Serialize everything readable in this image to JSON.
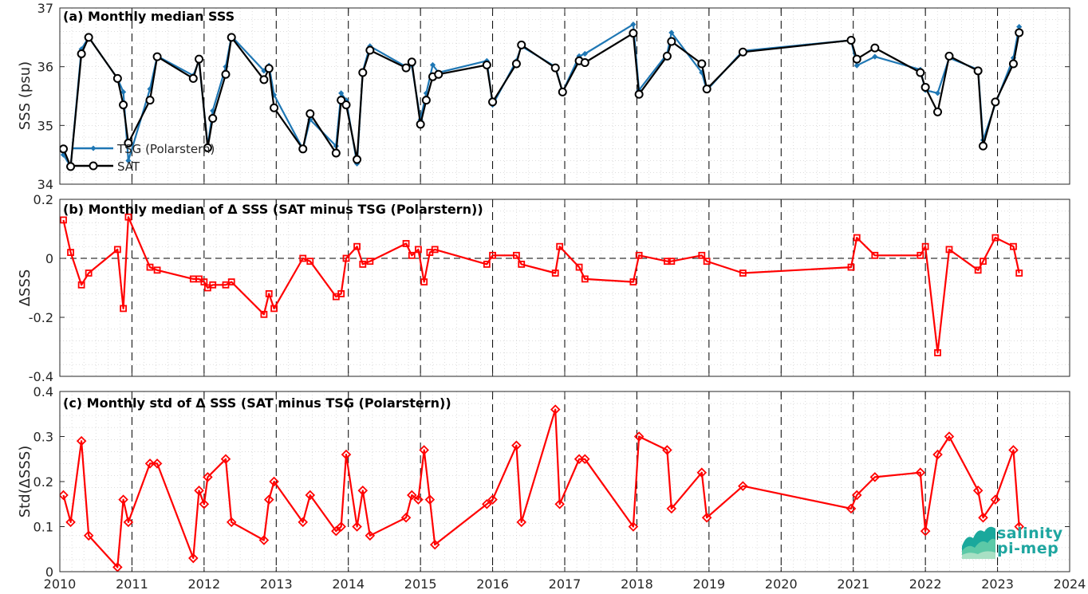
{
  "chart_data": [
    {
      "type": "line",
      "title": "(a) Monthly median SSS",
      "ylabel": "SSS (psu)",
      "ylim": [
        34,
        37
      ],
      "xlim": [
        2010,
        2024
      ],
      "yticks": [
        "34",
        "35",
        "36",
        "37"
      ],
      "grid": true,
      "legend_position": "lower-left",
      "series": [
        {
          "name": "TSG (Polarstern)",
          "color": "#1f77b4",
          "marker": "diamond",
          "x": [
            2010.05,
            2010.15,
            2010.3,
            2010.4,
            2010.8,
            2010.88,
            2010.95,
            2011.25,
            2011.35,
            2011.85,
            2011.93,
            2012.05,
            2012.12,
            2012.3,
            2012.38,
            2012.83,
            2012.9,
            2012.97,
            2013.37,
            2013.47,
            2013.83,
            2013.9,
            2013.97,
            2014.12,
            2014.2,
            2014.3,
            2014.8,
            2014.88,
            2015.0,
            2015.08,
            2015.17,
            2015.25,
            2015.92,
            2016.0,
            2016.33,
            2016.4,
            2016.87,
            2016.97,
            2017.2,
            2017.28,
            2017.95,
            2018.03,
            2018.42,
            2018.48,
            2018.9,
            2018.97,
            2019.47,
            2020.97,
            2021.05,
            2021.3,
            2021.93,
            2022.0,
            2022.17,
            2022.33,
            2022.73,
            2022.8,
            2022.97,
            2023.22,
            2023.3
          ],
          "values": [
            34.5,
            34.3,
            36.3,
            36.5,
            35.8,
            35.57,
            34.4,
            35.62,
            36.18,
            35.85,
            36.1,
            34.65,
            35.25,
            36.0,
            36.52,
            35.93,
            36.02,
            35.52,
            34.6,
            35.1,
            34.65,
            35.55,
            35.43,
            34.35,
            35.92,
            36.35,
            36.0,
            36.02,
            35.1,
            35.55,
            36.03,
            35.9,
            36.1,
            35.35,
            36.1,
            36.35,
            36.0,
            35.57,
            36.18,
            36.22,
            36.72,
            35.6,
            36.22,
            36.58,
            35.9,
            35.6,
            36.27,
            36.45,
            36.02,
            36.17,
            35.95,
            35.6,
            35.55,
            36.15,
            35.95,
            34.75,
            35.37,
            36.15,
            36.68
          ]
        },
        {
          "name": "SAT",
          "color": "#000000",
          "marker": "circle",
          "x": [
            2010.05,
            2010.15,
            2010.3,
            2010.4,
            2010.8,
            2010.88,
            2010.95,
            2011.25,
            2011.35,
            2011.85,
            2011.93,
            2012.05,
            2012.12,
            2012.3,
            2012.38,
            2012.83,
            2012.9,
            2012.97,
            2013.37,
            2013.47,
            2013.83,
            2013.9,
            2013.97,
            2014.12,
            2014.2,
            2014.3,
            2014.8,
            2014.88,
            2015.0,
            2015.08,
            2015.17,
            2015.25,
            2015.92,
            2016.0,
            2016.33,
            2016.4,
            2016.87,
            2016.97,
            2017.2,
            2017.28,
            2017.95,
            2018.03,
            2018.42,
            2018.48,
            2018.9,
            2018.97,
            2019.47,
            2020.97,
            2021.05,
            2021.3,
            2021.93,
            2022.0,
            2022.17,
            2022.33,
            2022.73,
            2022.8,
            2022.97,
            2023.22,
            2023.3
          ],
          "values": [
            34.6,
            34.3,
            36.22,
            36.5,
            35.8,
            35.35,
            34.7,
            35.43,
            36.17,
            35.8,
            36.13,
            34.62,
            35.12,
            35.87,
            36.5,
            35.78,
            35.97,
            35.3,
            34.6,
            35.2,
            34.53,
            35.43,
            35.35,
            34.42,
            35.9,
            36.28,
            35.98,
            36.08,
            35.02,
            35.43,
            35.83,
            35.87,
            36.03,
            35.4,
            36.05,
            36.37,
            35.98,
            35.57,
            36.1,
            36.07,
            36.57,
            35.53,
            36.18,
            36.43,
            36.05,
            35.62,
            36.25,
            36.45,
            36.13,
            36.32,
            35.9,
            35.65,
            35.23,
            36.18,
            35.93,
            34.65,
            35.4,
            36.05,
            36.58
          ]
        }
      ]
    },
    {
      "type": "line",
      "title": "(b) Monthly median of Δ SSS (SAT minus TSG (Polarstern))",
      "ylabel": "ΔSSS",
      "ylim": [
        -0.4,
        0.2
      ],
      "xlim": [
        2010,
        2024
      ],
      "yticks": [
        "-0.4",
        "-0.2",
        "0",
        "0.2"
      ],
      "grid": true,
      "reference_line": 0,
      "series": [
        {
          "color": "#ff0000",
          "marker": "square",
          "x": [
            2010.05,
            2010.15,
            2010.3,
            2010.4,
            2010.8,
            2010.88,
            2010.95,
            2011.25,
            2011.35,
            2011.85,
            2011.93,
            2012.0,
            2012.05,
            2012.12,
            2012.3,
            2012.38,
            2012.83,
            2012.9,
            2012.97,
            2013.37,
            2013.47,
            2013.83,
            2013.9,
            2013.97,
            2014.12,
            2014.2,
            2014.3,
            2014.8,
            2014.88,
            2014.97,
            2015.05,
            2015.13,
            2015.2,
            2015.92,
            2016.0,
            2016.33,
            2016.4,
            2016.87,
            2016.93,
            2017.2,
            2017.28,
            2017.95,
            2018.03,
            2018.42,
            2018.48,
            2018.9,
            2018.97,
            2019.47,
            2020.97,
            2021.05,
            2021.3,
            2021.93,
            2022.0,
            2022.17,
            2022.33,
            2022.73,
            2022.8,
            2022.97,
            2023.22,
            2023.3
          ],
          "values": [
            0.13,
            0.02,
            -0.09,
            -0.05,
            0.03,
            -0.17,
            0.14,
            -0.03,
            -0.04,
            -0.07,
            -0.07,
            -0.08,
            -0.1,
            -0.09,
            -0.09,
            -0.08,
            -0.19,
            -0.12,
            -0.17,
            0.0,
            -0.01,
            -0.13,
            -0.12,
            0.0,
            0.04,
            -0.02,
            -0.01,
            0.05,
            0.01,
            0.03,
            -0.08,
            0.02,
            0.03,
            -0.02,
            0.01,
            0.01,
            -0.02,
            -0.05,
            0.04,
            -0.03,
            -0.07,
            -0.08,
            0.01,
            -0.01,
            -0.01,
            0.01,
            -0.01,
            -0.05,
            -0.03,
            0.07,
            0.01,
            0.01,
            0.04,
            -0.32,
            0.03,
            -0.04,
            -0.01,
            0.07,
            0.04,
            -0.05
          ]
        }
      ]
    },
    {
      "type": "line",
      "title": "(c) Monthly std of Δ SSS (SAT minus TSG (Polarstern))",
      "ylabel": "Std(ΔSSS)",
      "ylim": [
        0,
        0.4
      ],
      "xlim": [
        2010,
        2024
      ],
      "yticks": [
        "0",
        "0.1",
        "0.2",
        "0.3",
        "0.4"
      ],
      "xticks": [
        "2010",
        "2011",
        "2012",
        "2013",
        "2014",
        "2015",
        "2016",
        "2017",
        "2018",
        "2019",
        "2020",
        "2021",
        "2022",
        "2023",
        "2024"
      ],
      "grid": true,
      "series": [
        {
          "color": "#ff0000",
          "marker": "diamond",
          "x": [
            2010.05,
            2010.15,
            2010.3,
            2010.4,
            2010.8,
            2010.88,
            2010.95,
            2011.25,
            2011.35,
            2011.85,
            2011.93,
            2012.0,
            2012.05,
            2012.3,
            2012.38,
            2012.83,
            2012.9,
            2012.97,
            2013.37,
            2013.47,
            2013.83,
            2013.9,
            2013.97,
            2014.12,
            2014.2,
            2014.3,
            2014.8,
            2014.88,
            2014.97,
            2015.05,
            2015.13,
            2015.2,
            2015.92,
            2016.0,
            2016.33,
            2016.4,
            2016.87,
            2016.93,
            2017.2,
            2017.28,
            2017.95,
            2018.03,
            2018.42,
            2018.48,
            2018.9,
            2018.97,
            2019.47,
            2020.97,
            2021.05,
            2021.3,
            2021.93,
            2022.0,
            2022.17,
            2022.33,
            2022.73,
            2022.8,
            2022.97,
            2023.22,
            2023.3
          ],
          "values": [
            0.17,
            0.11,
            0.29,
            0.08,
            0.01,
            0.16,
            0.11,
            0.24,
            0.24,
            0.03,
            0.18,
            0.15,
            0.21,
            0.25,
            0.11,
            0.07,
            0.16,
            0.2,
            0.11,
            0.17,
            0.09,
            0.1,
            0.26,
            0.1,
            0.18,
            0.08,
            0.12,
            0.17,
            0.16,
            0.27,
            0.16,
            0.06,
            0.15,
            0.16,
            0.28,
            0.11,
            0.36,
            0.15,
            0.25,
            0.25,
            0.1,
            0.3,
            0.27,
            0.14,
            0.22,
            0.12,
            0.19,
            0.14,
            0.17,
            0.21,
            0.22,
            0.09,
            0.26,
            0.3,
            0.18,
            0.12,
            0.16,
            0.27,
            0.1
          ]
        }
      ]
    }
  ],
  "logo": {
    "line1": "salinity",
    "line2": "pi-mep"
  }
}
